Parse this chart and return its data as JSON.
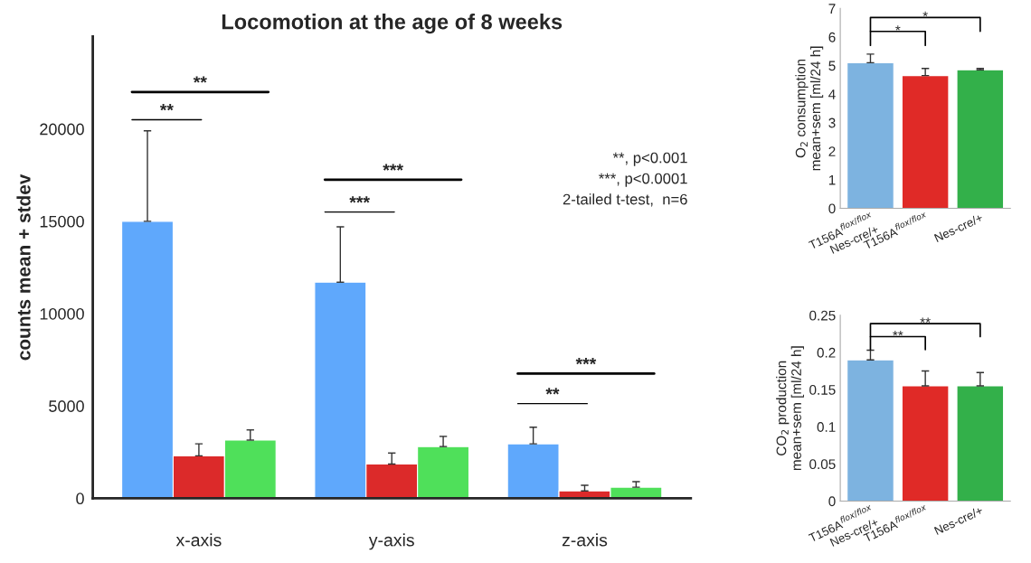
{
  "chart_data": [
    {
      "type": "bar",
      "title": "Locomotion at the age of 8 weeks",
      "ylabel": "counts mean + stdev",
      "categories": [
        "x-axis",
        "y-axis",
        "z-axis"
      ],
      "series": [
        {
          "color": "#5fa8fc",
          "values": [
            15000,
            11700,
            2950
          ],
          "errors": [
            [
              15000,
              19900
            ],
            [
              11700,
              14700
            ],
            [
              2950,
              3850
            ]
          ]
        },
        {
          "color": "#dc2a2a",
          "values": [
            2300,
            1850,
            400
          ],
          "errors": [
            [
              2300,
              2950
            ],
            [
              1850,
              2450
            ],
            [
              400,
              700
            ]
          ]
        },
        {
          "color": "#4fe05a",
          "values": [
            3150,
            2800,
            600
          ],
          "errors": [
            [
              3150,
              3700
            ],
            [
              2800,
              3350
            ],
            [
              600,
              900
            ]
          ]
        }
      ],
      "ylim": [
        0,
        25000
      ],
      "yticks": [
        0,
        5000,
        10000,
        15000,
        20000
      ],
      "grid": false,
      "legend": false,
      "annotations": [
        "**",
        "**",
        "***",
        "***",
        "**",
        "***",
        "**, p<0.001",
        "***, p<0.0001",
        "2-tailed t-test,  n=6"
      ]
    },
    {
      "type": "bar",
      "ylabel": "O$_{2}$ consumption\nmean+sem [ml/24 h]",
      "categories": [
        "T156A$^{flox/flox}$\nNes-cre/+",
        "T156A$^{flox/flox}$",
        "Nes-cre/+"
      ],
      "values": [
        5.1,
        4.65,
        4.85
      ],
      "colors": [
        "#7db3e0",
        "#e02a27",
        "#33b04a"
      ],
      "errors": [
        [
          5.1,
          5.4
        ],
        [
          4.65,
          4.9
        ],
        [
          4.85,
          4.9
        ]
      ],
      "ylim": [
        0,
        7
      ],
      "yticks": [
        0,
        1,
        2,
        3,
        4,
        5,
        6,
        7
      ],
      "grid": false,
      "legend": false,
      "annotations": [
        "*",
        "*"
      ]
    },
    {
      "type": "bar",
      "ylabel": "CO$_{2}$ production\nmean+sem [ml/24 h]",
      "categories": [
        "T156A$^{flox/flox}$\nNes-cre/+",
        "T156A$^{flox/flox}$",
        "Nes-cre/+"
      ],
      "values": [
        0.19,
        0.155,
        0.155
      ],
      "colors": [
        "#7db3e0",
        "#e02a27",
        "#33b04a"
      ],
      "errors": [
        [
          0.19,
          0.203
        ],
        [
          0.155,
          0.175
        ],
        [
          0.155,
          0.173
        ]
      ],
      "ylim": [
        0,
        0.25
      ],
      "yticks": [
        0,
        0.05,
        {
          "value": 0.1,
          "label": "0.1"
        },
        0.15,
        {
          "value": 0.2,
          "label": "0.2"
        },
        0.25
      ],
      "grid": false,
      "legend": false,
      "annotations": [
        "**",
        "**"
      ]
    }
  ]
}
